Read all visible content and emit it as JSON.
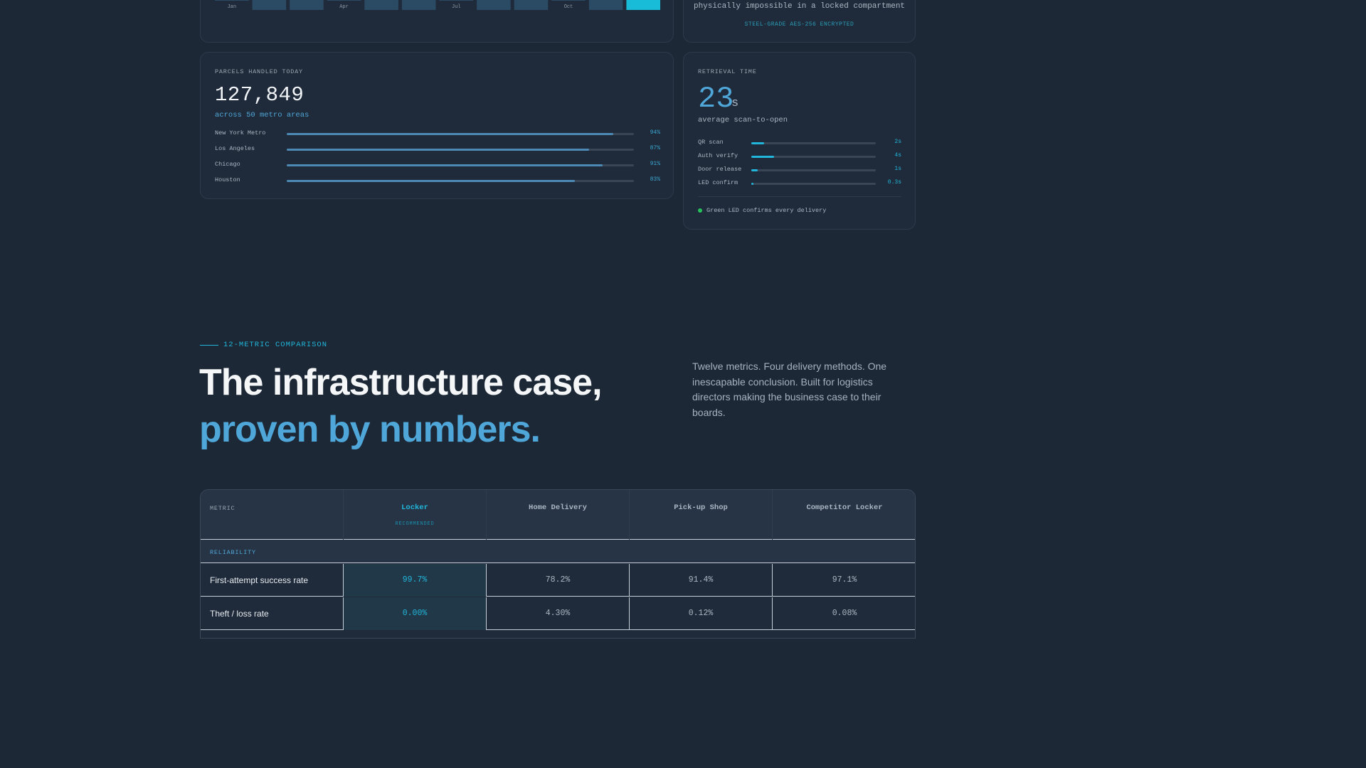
{
  "monthly_chart": {
    "month_labels": [
      "Jan",
      "Apr",
      "Jul",
      "Oct"
    ],
    "bar_colors": {
      "default": "#2b4a64",
      "highlight": "#18bcd8"
    }
  },
  "security_card": {
    "text": "physically impossible in a locked compartment",
    "badge": "STEEL-GRADE AES-256 ENCRYPTED"
  },
  "parcels_card": {
    "label": "PARCELS HANDLED TODAY",
    "value": "127,849",
    "subtitle": "across 50 metro areas",
    "metros": [
      {
        "name": "New York Metro",
        "pct_label": "94%",
        "fraction": 0.94
      },
      {
        "name": "Los Angeles",
        "pct_label": "87%",
        "fraction": 0.87
      },
      {
        "name": "Chicago",
        "pct_label": "91%",
        "fraction": 0.91
      },
      {
        "name": "Houston",
        "pct_label": "83%",
        "fraction": 0.83
      }
    ]
  },
  "retrieval_card": {
    "label": "RETRIEVAL TIME",
    "value": "23",
    "unit": "s",
    "caption": "average scan-to-open",
    "steps": [
      {
        "name": "QR scan",
        "value_label": "2s",
        "fraction": 0.1
      },
      {
        "name": "Auth verify",
        "value_label": "4s",
        "fraction": 0.18
      },
      {
        "name": "Door release",
        "value_label": "1s",
        "fraction": 0.05
      },
      {
        "name": "LED confirm",
        "value_label": "0.3s",
        "fraction": 0.015
      }
    ],
    "footnote": "Green LED confirms every delivery",
    "led_color": "#28c25a"
  },
  "comparison": {
    "eyebrow": "12-METRIC COMPARISON",
    "headline_line1": "The infrastructure case,",
    "headline_line2": "proven by numbers.",
    "intro": "Twelve metrics. Four delivery methods. One inescapable conclusion. Built for logistics directors making the business case to their boards.",
    "table": {
      "metric_header": "METRIC",
      "columns": [
        {
          "label": "Locker",
          "badge": "RECOMMENDED"
        },
        {
          "label": "Home Delivery",
          "badge": ""
        },
        {
          "label": "Pick-up Shop",
          "badge": ""
        },
        {
          "label": "Competitor Locker",
          "badge": ""
        }
      ],
      "group": "RELIABILITY",
      "rows": [
        {
          "metric": "First-attempt success rate",
          "values": [
            "99.7%",
            "78.2%",
            "91.4%",
            "97.1%"
          ]
        },
        {
          "metric": "Theft / loss rate",
          "values": [
            "0.00%",
            "4.30%",
            "0.12%",
            "0.08%"
          ]
        }
      ]
    }
  }
}
